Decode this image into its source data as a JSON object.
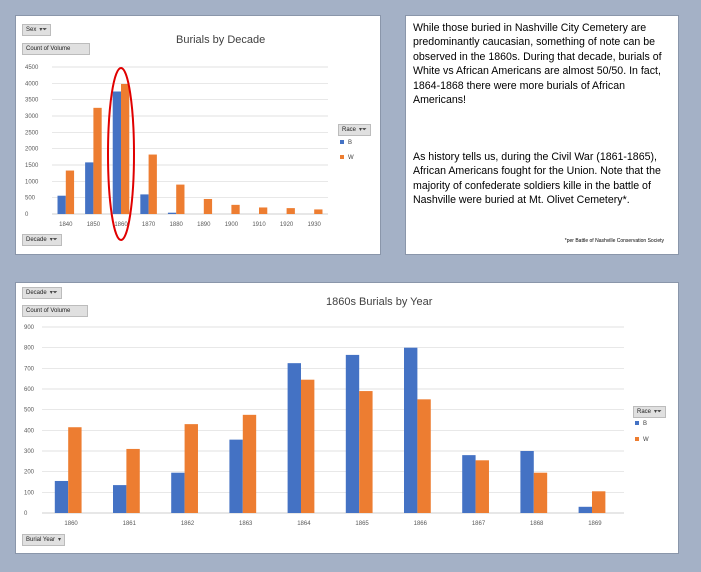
{
  "top_chart": {
    "filter_sex": "Sex",
    "value_field": "Count of Volume",
    "axis_field": "Decade",
    "legend_field": "Race",
    "highlight_category": "1860"
  },
  "bottom_chart": {
    "filter_field": "Decade",
    "value_field": "Count of Volume",
    "axis_field": "Burial Year",
    "legend_field": "Race"
  },
  "note": {
    "para1": "While those buried in Nashville City Cemetery are predominantly caucasian, something of note can be observed in the 1860s. During that decade, burials of White vs African Americans are almost 50/50. In fact, 1864-1868 there were more burials of African Americans!",
    "para2": "As history tells us, during the Civil War (1861-1865), African Americans fought for the Union. Note that the majority of confederate soldiers kille in the battle of Nashville were buried at Mt. Olivet Cemetery*.",
    "source": "*per Battle of Nashville Conservation Society"
  },
  "colors": {
    "B": "#4472c4",
    "W": "#ed7d31",
    "highlight": "#e00000",
    "grid": "#d9d9d9"
  },
  "chart_data": [
    {
      "type": "bar",
      "title": "Burials by Decade",
      "categories": [
        "1840",
        "1850",
        "1860",
        "1870",
        "1880",
        "1890",
        "1900",
        "1910",
        "1920",
        "1930"
      ],
      "series": [
        {
          "name": "B",
          "values": [
            560,
            1580,
            3750,
            600,
            40,
            0,
            0,
            0,
            0,
            0
          ]
        },
        {
          "name": "W",
          "values": [
            1330,
            3250,
            3980,
            1820,
            900,
            460,
            280,
            200,
            180,
            140
          ]
        }
      ],
      "yticks": [
        "0",
        "500",
        "1000",
        "1500",
        "2000",
        "2500",
        "3000",
        "3500",
        "4000",
        "4500"
      ],
      "ylim": [
        0,
        4500
      ],
      "legend": "right",
      "grid": true
    },
    {
      "type": "bar",
      "title": "1860s Burials  by Year",
      "categories": [
        "1860",
        "1861",
        "1862",
        "1863",
        "1864",
        "1865",
        "1866",
        "1867",
        "1868",
        "1869"
      ],
      "series": [
        {
          "name": "B",
          "values": [
            155,
            135,
            195,
            355,
            725,
            765,
            800,
            280,
            300,
            30
          ]
        },
        {
          "name": "W",
          "values": [
            415,
            310,
            430,
            475,
            645,
            590,
            550,
            255,
            195,
            105
          ]
        }
      ],
      "yticks": [
        "0",
        "100",
        "200",
        "300",
        "400",
        "500",
        "600",
        "700",
        "800",
        "900"
      ],
      "ylim": [
        0,
        900
      ],
      "legend": "right",
      "grid": true
    }
  ]
}
